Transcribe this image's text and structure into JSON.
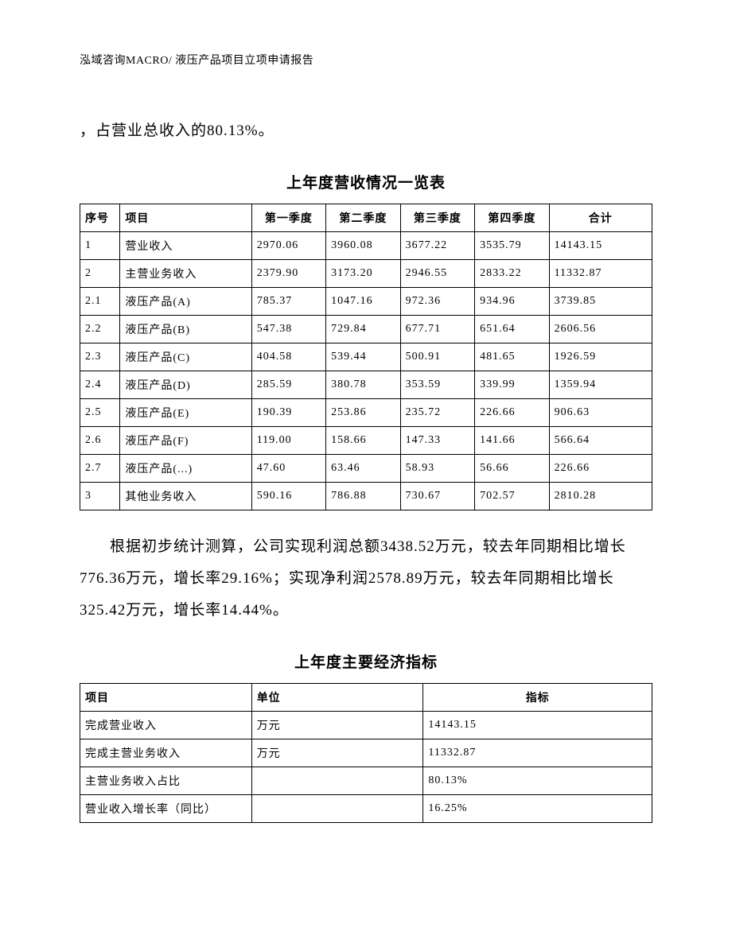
{
  "header": "泓域咨询MACRO/    液压产品项目立项申请报告",
  "intro_line": "，占营业总收入的80.13%。",
  "table1": {
    "title": "上年度营收情况一览表",
    "columns": [
      "序号",
      "项目",
      "第一季度",
      "第二季度",
      "第三季度",
      "第四季度",
      "合计"
    ],
    "rows": [
      [
        "1",
        "营业收入",
        "2970.06",
        "3960.08",
        "3677.22",
        "3535.79",
        "14143.15"
      ],
      [
        "2",
        "主营业务收入",
        "2379.90",
        "3173.20",
        "2946.55",
        "2833.22",
        "11332.87"
      ],
      [
        "2.1",
        "液压产品(A)",
        "785.37",
        "1047.16",
        "972.36",
        "934.96",
        "3739.85"
      ],
      [
        "2.2",
        "液压产品(B)",
        "547.38",
        "729.84",
        "677.71",
        "651.64",
        "2606.56"
      ],
      [
        "2.3",
        "液压产品(C)",
        "404.58",
        "539.44",
        "500.91",
        "481.65",
        "1926.59"
      ],
      [
        "2.4",
        "液压产品(D)",
        "285.59",
        "380.78",
        "353.59",
        "339.99",
        "1359.94"
      ],
      [
        "2.5",
        "液压产品(E)",
        "190.39",
        "253.86",
        "235.72",
        "226.66",
        "906.63"
      ],
      [
        "2.6",
        "液压产品(F)",
        "119.00",
        "158.66",
        "147.33",
        "141.66",
        "566.64"
      ],
      [
        "2.7",
        "液压产品(...)",
        "47.60",
        "63.46",
        "58.93",
        "56.66",
        "226.66"
      ],
      [
        "3",
        "其他业务收入",
        "590.16",
        "786.88",
        "730.67",
        "702.57",
        "2810.28"
      ]
    ]
  },
  "paragraph": "根据初步统计测算，公司实现利润总额3438.52万元，较去年同期相比增长776.36万元，增长率29.16%；实现净利润2578.89万元，较去年同期相比增长325.42万元，增长率14.44%。",
  "table2": {
    "title": "上年度主要经济指标",
    "columns": [
      "项目",
      "单位",
      "指标"
    ],
    "rows": [
      [
        "完成营业收入",
        "万元",
        "14143.15"
      ],
      [
        "完成主营业务收入",
        "万元",
        "11332.87"
      ],
      [
        "主营业务收入占比",
        "",
        "80.13%"
      ],
      [
        "营业收入增长率（同比）",
        "",
        "16.25%"
      ]
    ]
  }
}
